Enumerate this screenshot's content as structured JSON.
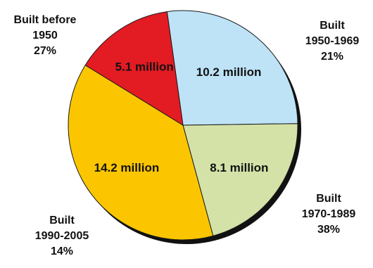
{
  "chart_data": {
    "type": "pie",
    "slices": [
      {
        "label_lines": [
          "Built before",
          "1950",
          "27%"
        ],
        "percent": 27,
        "value_label": "10.2 million",
        "value": 10.2,
        "color": "#BEE3F7"
      },
      {
        "label_lines": [
          "Built",
          "1950-1969",
          "21%"
        ],
        "percent": 21,
        "value_label": "8.1 million",
        "value": 8.1,
        "color": "#D4E2A8"
      },
      {
        "label_lines": [
          "Built",
          "1970-1989",
          "38%"
        ],
        "percent": 38,
        "value_label": "14.2 million",
        "value": 14.2,
        "color": "#FBC600"
      },
      {
        "label_lines": [
          "Built",
          "1990-2005",
          "14%"
        ],
        "percent": 14,
        "value_label": "5.1 million",
        "value": 5.1,
        "color": "#E31B23"
      }
    ],
    "start_angle_deg": -8,
    "direction": "clockwise",
    "legend": "none"
  }
}
